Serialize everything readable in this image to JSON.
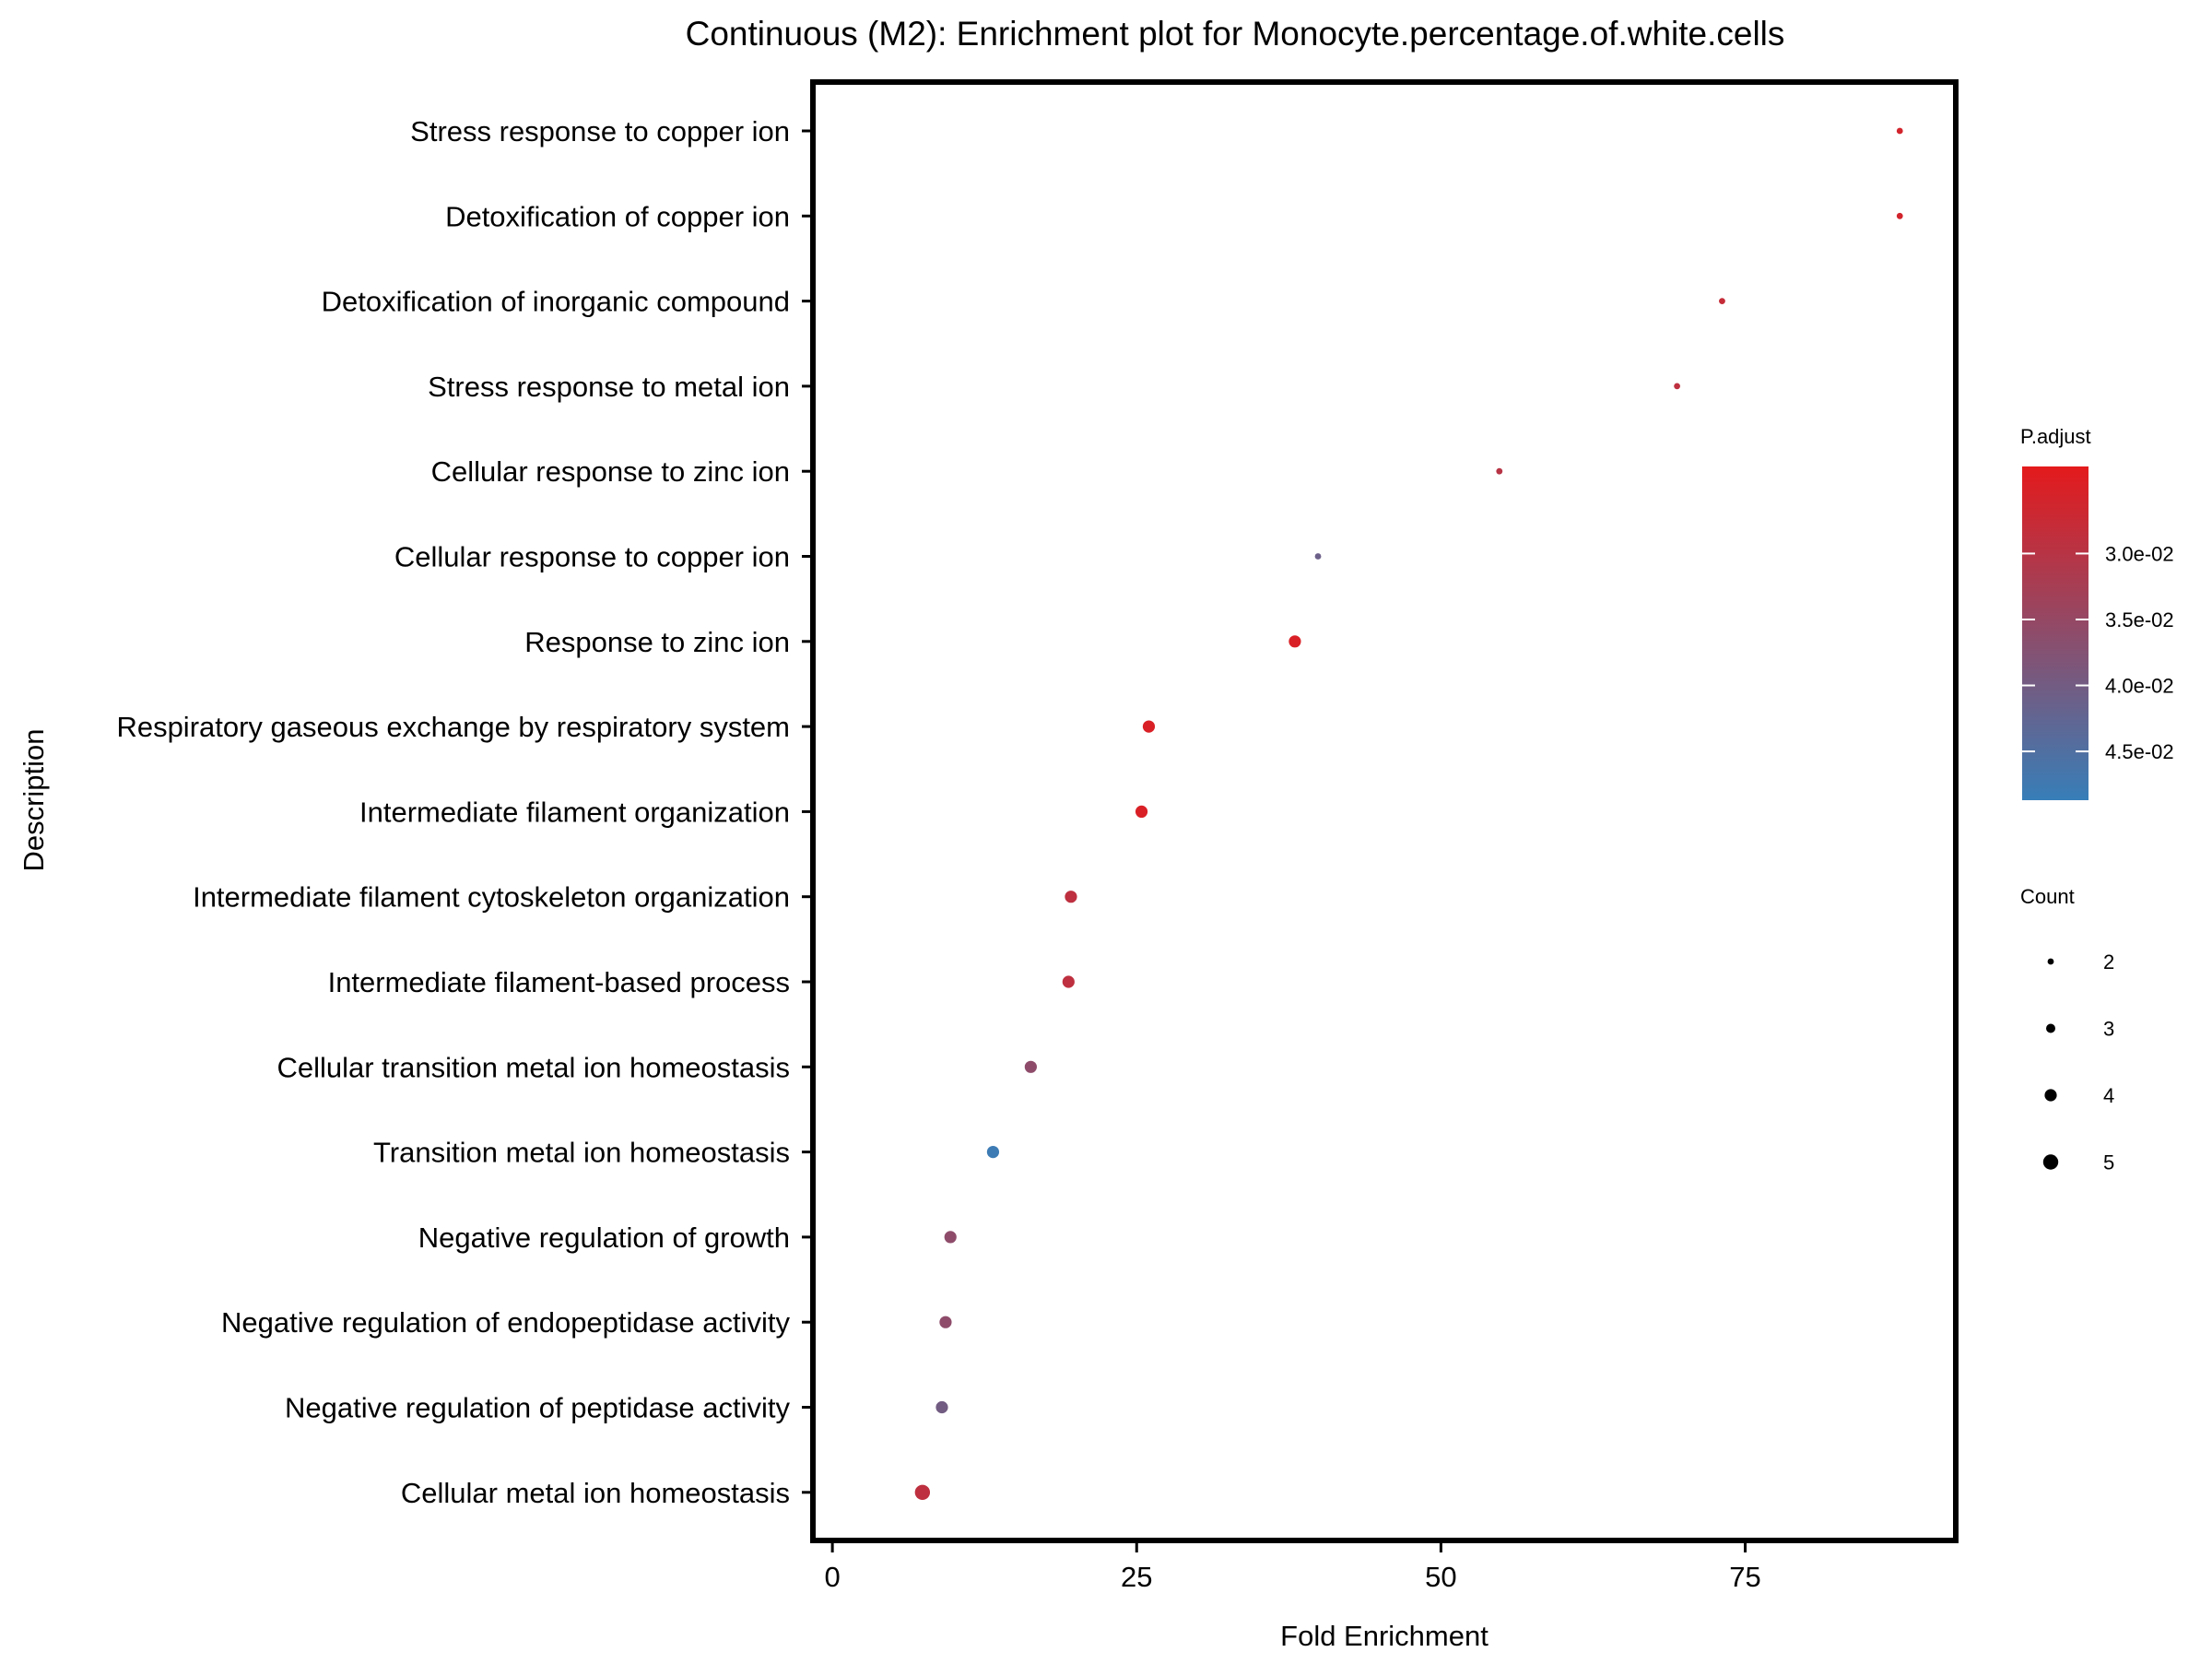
{
  "chart_data": {
    "type": "scatter",
    "title": "Continuous (M2): Enrichment plot for Monocyte.percentage.of.white.cells",
    "xlabel": "Fold Enrichment",
    "ylabel": "Description",
    "xlim": [
      -1.6,
      92.3
    ],
    "xticks": [
      0,
      25,
      50,
      75
    ],
    "grid": false,
    "points": [
      {
        "description": "Stress response to copper ion",
        "fold_enrichment": 87.7,
        "count": 2,
        "p_adjust": 0.026
      },
      {
        "description": "Detoxification of copper ion",
        "fold_enrichment": 87.7,
        "count": 2,
        "p_adjust": 0.026
      },
      {
        "description": "Detoxification of inorganic compound",
        "fold_enrichment": 73.1,
        "count": 2,
        "p_adjust": 0.028
      },
      {
        "description": "Stress response to metal ion",
        "fold_enrichment": 69.4,
        "count": 2,
        "p_adjust": 0.029
      },
      {
        "description": "Cellular response to zinc ion",
        "fold_enrichment": 54.8,
        "count": 2,
        "p_adjust": 0.03
      },
      {
        "description": "Cellular response to copper ion",
        "fold_enrichment": 39.9,
        "count": 2,
        "p_adjust": 0.041
      },
      {
        "description": "Response to zinc ion",
        "fold_enrichment": 38.0,
        "count": 4,
        "p_adjust": 0.025
      },
      {
        "description": "Respiratory gaseous exchange by respiratory system",
        "fold_enrichment": 26.0,
        "count": 4,
        "p_adjust": 0.025
      },
      {
        "description": "Intermediate filament organization",
        "fold_enrichment": 25.4,
        "count": 4,
        "p_adjust": 0.025
      },
      {
        "description": "Intermediate filament cytoskeleton organization",
        "fold_enrichment": 19.6,
        "count": 4,
        "p_adjust": 0.029
      },
      {
        "description": "Intermediate filament-based process",
        "fold_enrichment": 19.4,
        "count": 4,
        "p_adjust": 0.029
      },
      {
        "description": "Cellular transition metal ion homeostasis",
        "fold_enrichment": 16.3,
        "count": 4,
        "p_adjust": 0.036
      },
      {
        "description": "Transition metal ion homeostasis",
        "fold_enrichment": 13.2,
        "count": 4,
        "p_adjust": 0.048
      },
      {
        "description": "Negative regulation of growth",
        "fold_enrichment": 9.7,
        "count": 4,
        "p_adjust": 0.036
      },
      {
        "description": "Negative regulation of endopeptidase activity",
        "fold_enrichment": 9.3,
        "count": 4,
        "p_adjust": 0.036
      },
      {
        "description": "Negative regulation of peptidase activity",
        "fold_enrichment": 9.0,
        "count": 4,
        "p_adjust": 0.04
      },
      {
        "description": "Cellular metal ion homeostasis",
        "fold_enrichment": 7.4,
        "count": 5,
        "p_adjust": 0.029
      }
    ],
    "color_legend": {
      "title": "P.adjust",
      "ticks": [
        "3.0e-02",
        "3.5e-02",
        "4.0e-02",
        "4.5e-02"
      ],
      "tick_values": [
        0.03,
        0.035,
        0.04,
        0.045
      ],
      "range": [
        0.0234,
        0.0487
      ],
      "low_color": "#e41a1c",
      "high_color": "#377eb8"
    },
    "size_legend": {
      "title": "Count",
      "values": [
        2,
        3,
        4,
        5
      ],
      "labels": [
        "2",
        "3",
        "4",
        "5"
      ]
    },
    "legend_position": "right"
  }
}
